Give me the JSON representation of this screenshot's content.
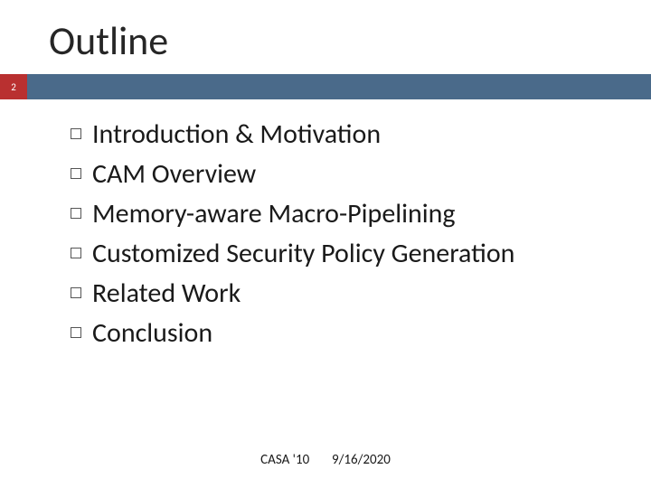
{
  "slide": {
    "title": "Outline",
    "page_number": "2",
    "title_fontsize": 44,
    "title_color": "#262626",
    "accent_bar_color": "#4a6a8a",
    "page_box_color": "#b93030",
    "page_box_text_color": "#ffffff",
    "background_color": "#ffffff",
    "bullet_style": "hollow-square",
    "bullet_border_color": "#555555",
    "body_fontsize": 30,
    "body_color": "#1a1a1a",
    "items": [
      "Introduction & Motivation",
      "CAM Overview",
      "Memory-aware Macro-Pipelining",
      "Customized Security Policy Generation",
      "Related Work",
      "Conclusion"
    ],
    "footer": {
      "venue": "CASA '10",
      "date": "9/16/2020",
      "fontsize": 15
    }
  }
}
